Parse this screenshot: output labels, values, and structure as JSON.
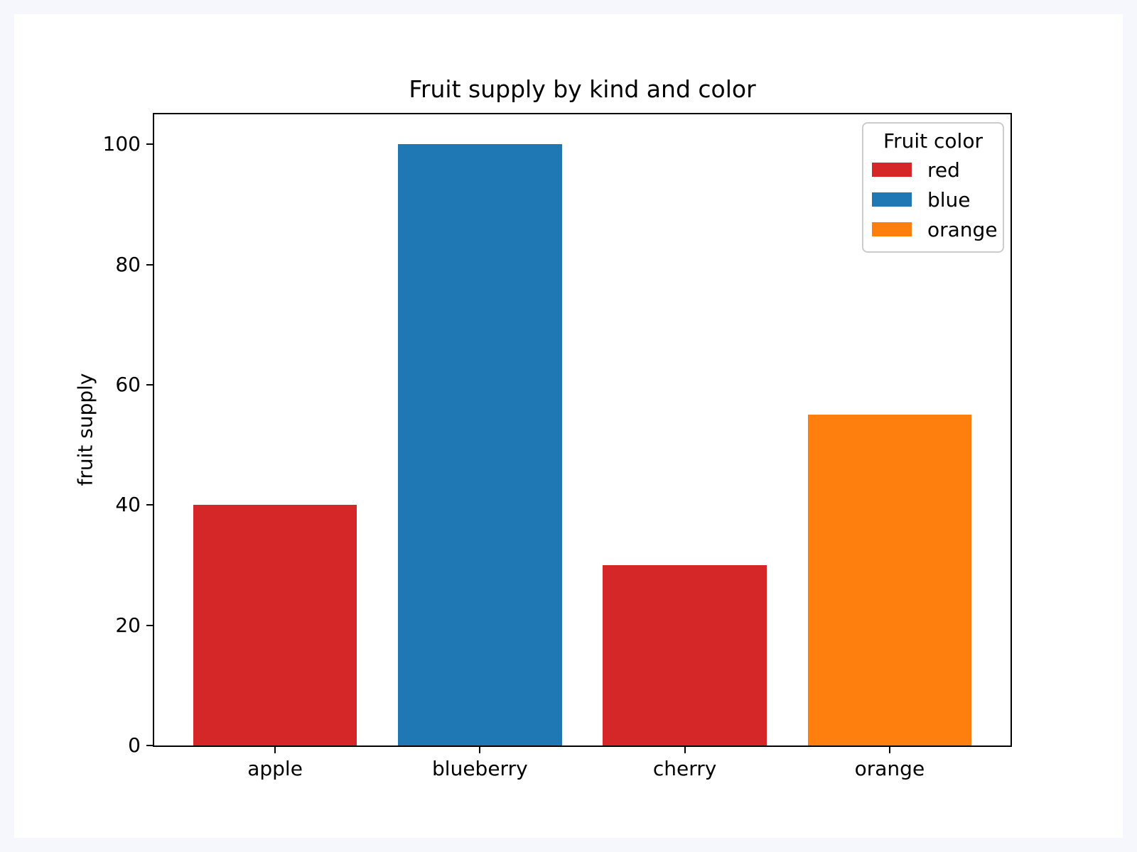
{
  "chart_data": {
    "type": "bar",
    "title": "Fruit supply by kind and color",
    "xlabel": "",
    "ylabel": "fruit supply",
    "categories": [
      "apple",
      "blueberry",
      "cherry",
      "orange"
    ],
    "values": [
      40,
      100,
      30,
      55
    ],
    "bar_colors": [
      "#d62728",
      "#1f77b4",
      "#d62728",
      "#ff7f0e"
    ],
    "yticks": [
      0,
      20,
      40,
      60,
      80,
      100
    ],
    "ylim": [
      0,
      105
    ],
    "xlim": [
      -0.59,
      3.59
    ],
    "bar_width": 0.8,
    "grid": false,
    "legend": {
      "title": "Fruit color",
      "position": "upper right",
      "entries": [
        {
          "label": "red",
          "color": "#d62728"
        },
        {
          "label": "blue",
          "color": "#1f77b4"
        },
        {
          "label": "orange",
          "color": "#ff7f0e"
        }
      ]
    }
  },
  "colors": {
    "page_background": "#f6f7fd",
    "figure_background": "#ffffff",
    "axis": "#000000",
    "legend_border": "#cccccc"
  }
}
